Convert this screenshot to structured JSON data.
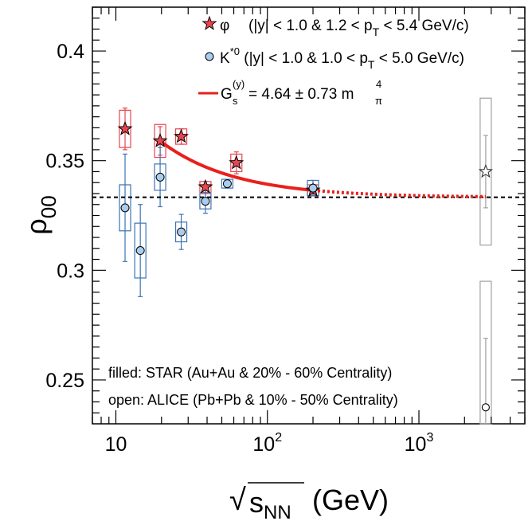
{
  "chart_data": {
    "type": "scatter",
    "xscale": "log",
    "xlim": [
      7,
      5000
    ],
    "ylim": [
      0.23,
      0.42
    ],
    "grid": false,
    "xlabel": {
      "radical": "√",
      "main": "s",
      "sub": "NN",
      "unit": "(GeV)"
    },
    "ylabel": {
      "main": "ρ",
      "sub": "00"
    },
    "y_ticks": [
      0.25,
      0.3,
      0.35,
      0.4
    ],
    "y_tick_labels": [
      "0.25",
      "0.3",
      "0.35",
      "0.4"
    ],
    "x_ticks": [
      10,
      100,
      1000
    ],
    "x_tick_labels": [
      {
        "base": "10",
        "exp": ""
      },
      {
        "base": "10",
        "exp": "2"
      },
      {
        "base": "10",
        "exp": "3"
      }
    ],
    "reference_line": {
      "y": 0.3333,
      "style": "dashed"
    },
    "legend": {
      "position": "top-right",
      "phi": {
        "symbol": "φ",
        "text": "(|y| < 1.0 & 1.2 < p",
        "sub": "T",
        "tail": " < 5.4 GeV/c)"
      },
      "kstar": {
        "symbol": "K",
        "sup": "*0",
        "text": " (|y| < 1.0 & 1.0 < p",
        "sub": "T",
        "tail": " < 5.0 GeV/c)"
      },
      "fit": {
        "label": "G",
        "sub": "s",
        "sup": "(y)",
        "text": " = 4.64 ± 0.73 m",
        "tail_sub": "π",
        "tail_sup": "4"
      }
    },
    "annotations": [
      "filled: STAR (Au+Au & 20% - 60% Centrality)",
      "open: ALICE (Pb+Pb & 10% - 50% Centrality)"
    ],
    "series": [
      {
        "name": "φ",
        "collaboration": "STAR",
        "marker": "star",
        "color": "#e8454f",
        "points": [
          {
            "x": 11.5,
            "y": 0.3645,
            "stat": 0.0095,
            "sys": 0.0085
          },
          {
            "x": 19.6,
            "y": 0.359,
            "stat": 0.0065,
            "sys": 0.0075
          },
          {
            "x": 27,
            "y": 0.361,
            "stat": 0.0035,
            "sys": 0.0035
          },
          {
            "x": 39,
            "y": 0.338,
            "stat": 0.0025,
            "sys": 0.0025
          },
          {
            "x": 62.4,
            "y": 0.349,
            "stat": 0.005,
            "sys": 0.004
          },
          {
            "x": 200,
            "y": 0.3365,
            "stat": 0.0025,
            "sys": 0.0025
          }
        ]
      },
      {
        "name": "K*0",
        "collaboration": "STAR",
        "marker": "circle",
        "color": "#a9cdee",
        "points": [
          {
            "x": 11.5,
            "y": 0.3285,
            "stat": 0.0245,
            "sys": 0.0105
          },
          {
            "x": 14.5,
            "y": 0.309,
            "stat": 0.021,
            "sys": 0.0125
          },
          {
            "x": 19.6,
            "y": 0.3425,
            "stat": 0.0135,
            "sys": 0.006
          },
          {
            "x": 27,
            "y": 0.3175,
            "stat": 0.008,
            "sys": 0.0045
          },
          {
            "x": 39,
            "y": 0.3315,
            "stat": 0.0055,
            "sys": 0.0035
          },
          {
            "x": 54.4,
            "y": 0.3395,
            "stat": 0.002,
            "sys": 0.002
          },
          {
            "x": 200,
            "y": 0.3375,
            "stat": 0.0035,
            "sys": 0.0035
          }
        ]
      },
      {
        "name": "φ",
        "collaboration": "ALICE",
        "marker": "open-star",
        "color": "#888888",
        "points": [
          {
            "x": 2760,
            "y": 0.345,
            "stat": 0.0165,
            "sys": 0.0335
          }
        ]
      },
      {
        "name": "K*0",
        "collaboration": "ALICE",
        "marker": "open-circle",
        "color": "#888888",
        "points": [
          {
            "x": 2760,
            "y": 0.2375,
            "stat": 0.0315,
            "sys": 0.0575
          }
        ]
      }
    ],
    "fit_curve": {
      "color": "#e8201c",
      "model": "y = 1/3 + A / x^p",
      "asymptote": 0.3333,
      "anchor_x": 200,
      "anchor_y": 0.3365,
      "start_y": 0.359,
      "solid_range": [
        19.6,
        200
      ],
      "dotted_range": [
        200,
        2760
      ]
    }
  }
}
